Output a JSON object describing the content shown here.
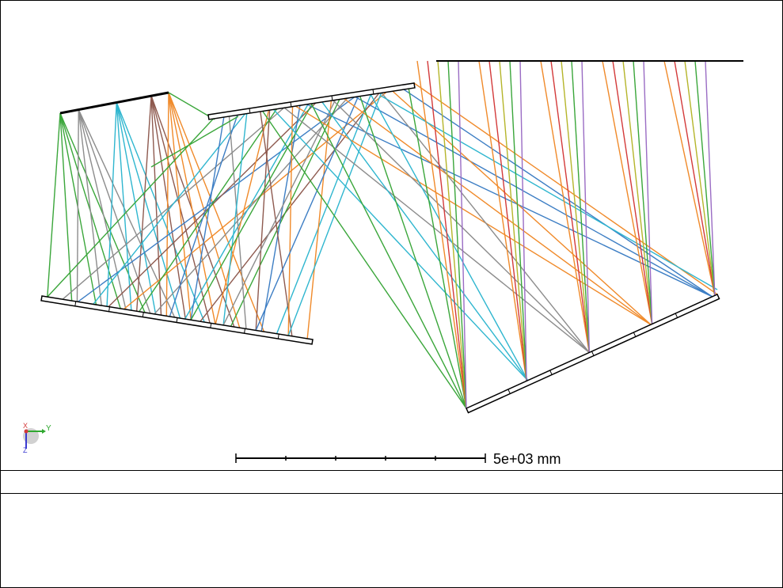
{
  "scale_bar": {
    "label": "5e+03 mm"
  },
  "axis_triad": {
    "x_label": "X",
    "y_label": "Y",
    "z_label": "Z"
  },
  "colors": {
    "green": "#3aa63a",
    "gray": "#8c8c8c",
    "cyan": "#2fb6cf",
    "blue": "#3d7ec4",
    "brown": "#8e5a4f",
    "orange": "#f08a2a",
    "red": "#d33a3a",
    "purple": "#9a6cc4",
    "olive": "#b5b52a"
  },
  "info_bar": {
    "text": ""
  },
  "footer": {
    "text": ""
  }
}
